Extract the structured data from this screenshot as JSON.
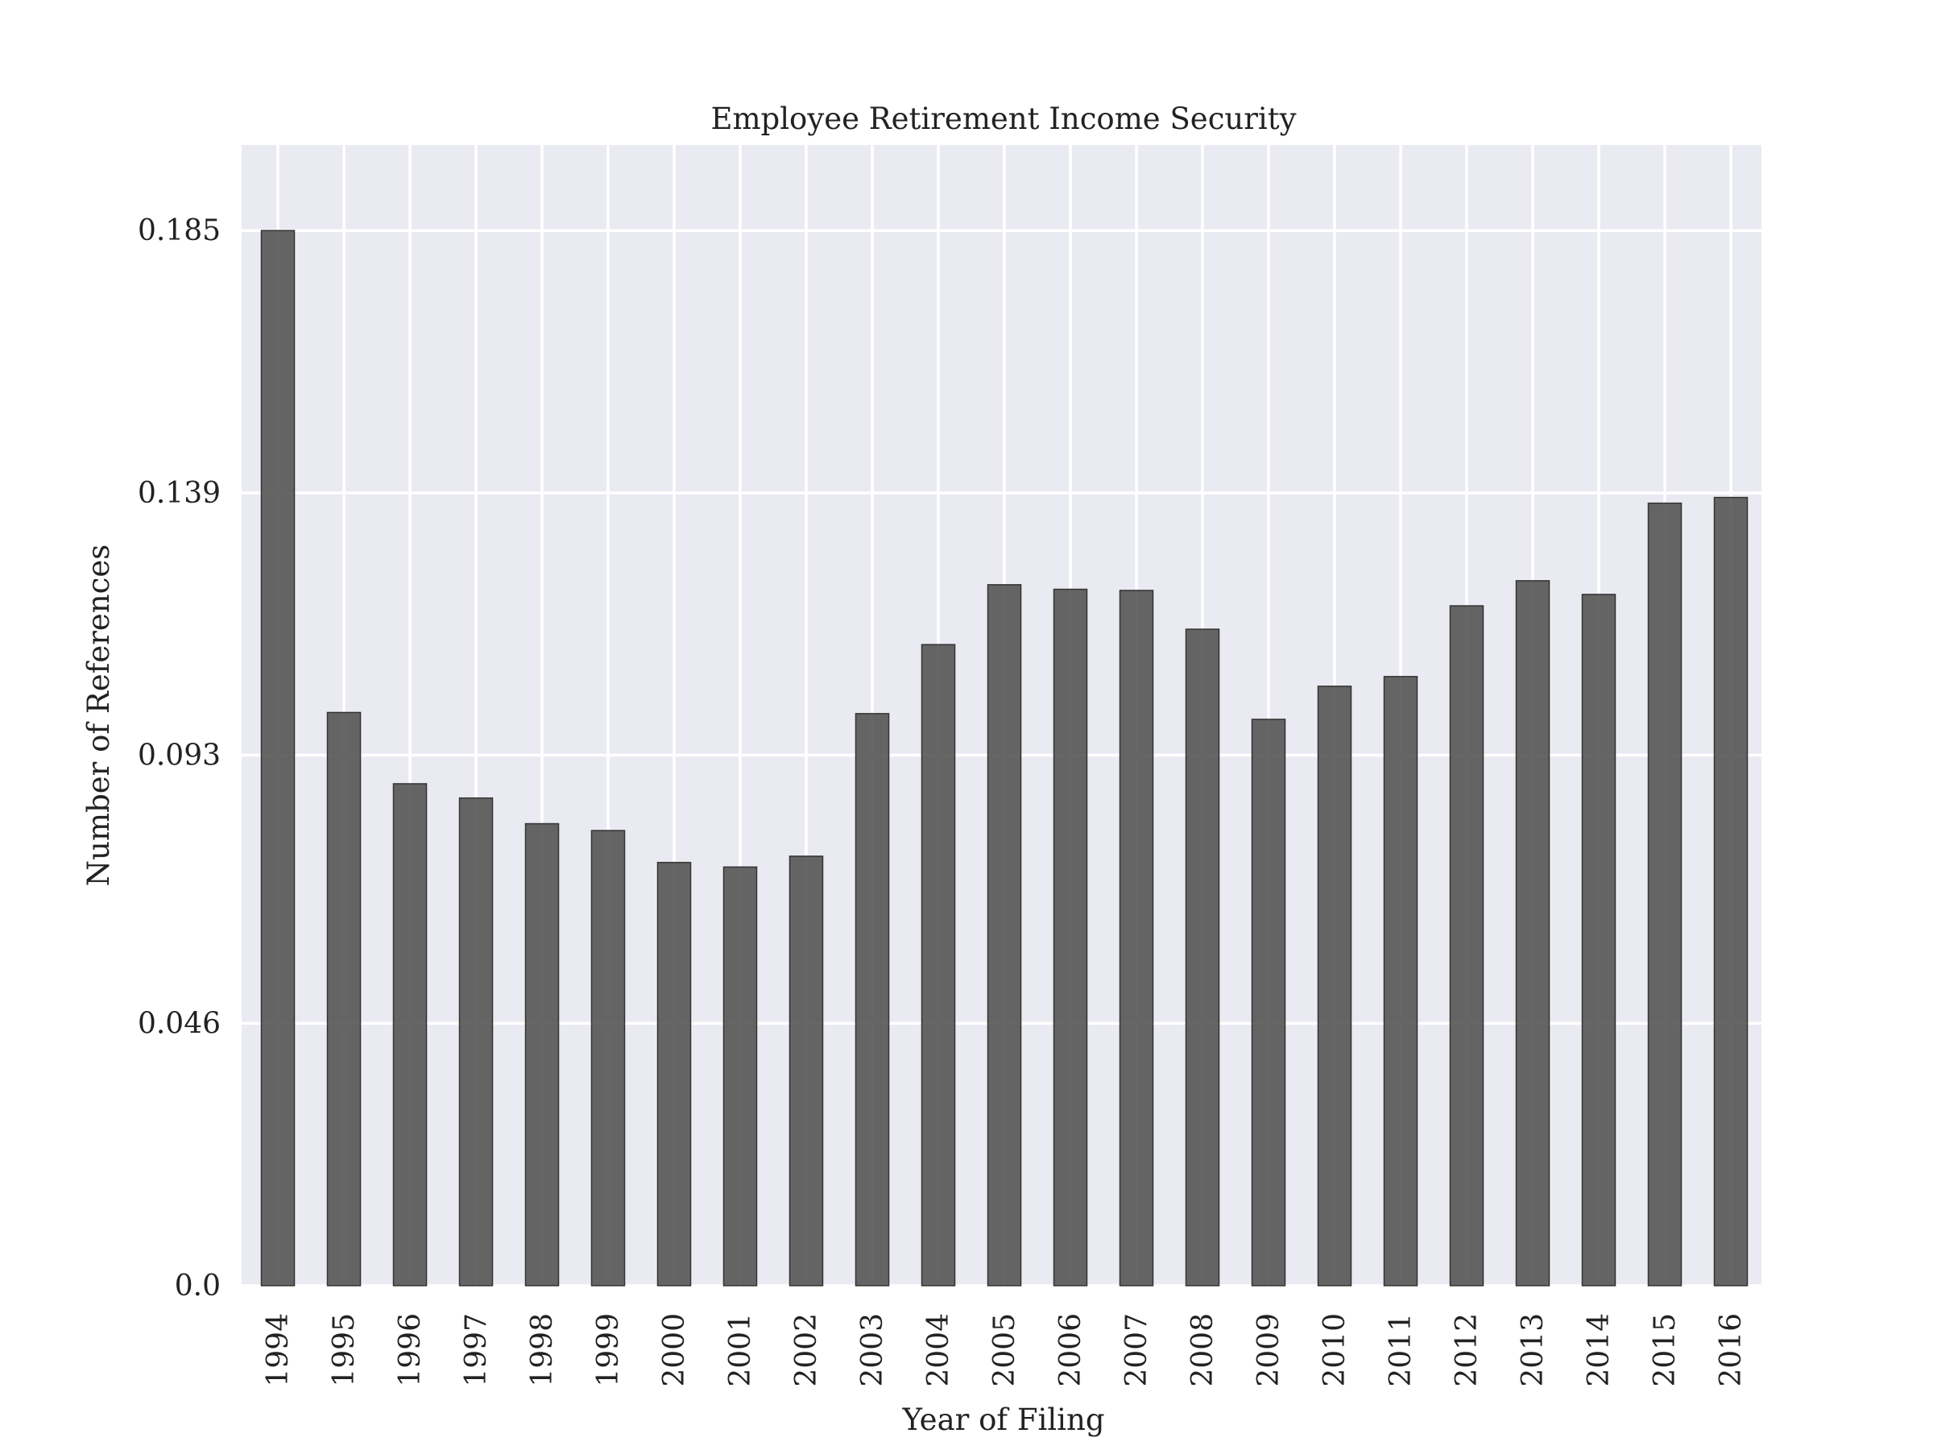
{
  "chart_data": {
    "type": "bar",
    "title": "Employee Retirement Income Security",
    "xlabel": "Year of Filing",
    "ylabel": "Number of References",
    "categories": [
      "1994",
      "1995",
      "1996",
      "1997",
      "1998",
      "1999",
      "2000",
      "2001",
      "2002",
      "2003",
      "2004",
      "2005",
      "2006",
      "2007",
      "2008",
      "2009",
      "2010",
      "2011",
      "2012",
      "2013",
      "2014",
      "2015",
      "2016"
    ],
    "values": [
      0.185,
      0.1005,
      0.088,
      0.0855,
      0.081,
      0.0798,
      0.0742,
      0.0734,
      0.0753,
      0.1003,
      0.1124,
      0.1229,
      0.1221,
      0.1219,
      0.1151,
      0.0993,
      0.1051,
      0.1068,
      0.1192,
      0.1236,
      0.1212,
      0.1372,
      0.1382
    ],
    "yticks": [
      0.0,
      0.046,
      0.093,
      0.139,
      0.185
    ],
    "ytick_labels": [
      "0.0",
      "0.046",
      "0.093",
      "0.139",
      "0.185"
    ],
    "ylim": [
      0,
      0.2
    ],
    "grid": true,
    "legend": "none",
    "colors": {
      "bar": "#555555",
      "background": "#eaeaf2",
      "grid": "#ffffff"
    }
  }
}
